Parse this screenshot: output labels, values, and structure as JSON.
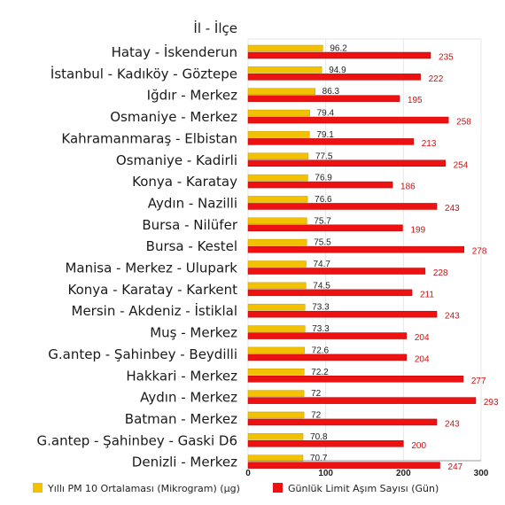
{
  "chart_data": {
    "type": "bar",
    "orientation": "horizontal",
    "category_header": "İl - İlçe",
    "categories": [
      "Hatay - İskenderun",
      "İstanbul - Kadıköy - Göztepe",
      "Iğdır - Merkez",
      "Osmaniye - Merkez",
      "Kahramanmaraş - Elbistan",
      "Osmaniye - Kadirli",
      "Konya - Karatay",
      "Aydın - Nazilli",
      "Bursa - Nilüfer",
      "Bursa - Kestel",
      "Manisa - Merkez - Ulupark",
      "Konya - Karatay - Karkent",
      "Mersin - Akdeniz - İstiklal",
      "Muş - Merkez",
      "G.antep - Şahinbey - Beydilli",
      "Hakkari - Merkez",
      "Aydın - Merkez",
      "Batman - Merkez",
      "G.antep - Şahinbey - Gaski D6",
      "Denizli - Merkez"
    ],
    "series": [
      {
        "name": "Yıllı PM 10 Ortalaması (Mikrogram) (μg)",
        "color": "#f2c200",
        "values": [
          96.2,
          94.9,
          86.3,
          79.4,
          79.1,
          77.5,
          76.9,
          76.6,
          75.7,
          75.5,
          74.7,
          74.5,
          73.3,
          73.3,
          72.6,
          72.2,
          72,
          72,
          70.8,
          70.7
        ],
        "labels": [
          "96.2",
          "94.9",
          "86.3",
          "79.4",
          "79.1",
          "77.5",
          "76.9",
          "76.6",
          "75.7",
          "75.5",
          "74.7",
          "74.5",
          "73.3",
          "73.3",
          "72.6",
          "72.2",
          "72",
          "72",
          "70.8",
          "70.7"
        ]
      },
      {
        "name": "Günlük Limit Aşım Sayısı (Gün)",
        "color": "#ee1111",
        "values": [
          235,
          222,
          195,
          258,
          213,
          254,
          186,
          243,
          199,
          278,
          228,
          211,
          243,
          204,
          204,
          277,
          293,
          243,
          200,
          247
        ],
        "labels": [
          "235",
          "222",
          "195",
          "258",
          "213",
          "254",
          "186",
          "243",
          "199",
          "278",
          "228",
          "211",
          "243",
          "204",
          "204",
          "277",
          "293",
          "243",
          "200",
          "247"
        ]
      }
    ],
    "xlim": [
      0,
      300
    ],
    "xticks": [
      0,
      100,
      200,
      300
    ],
    "xtick_labels": [
      "0",
      "100",
      "200",
      "300"
    ],
    "grid": true,
    "legend": "bottom"
  }
}
